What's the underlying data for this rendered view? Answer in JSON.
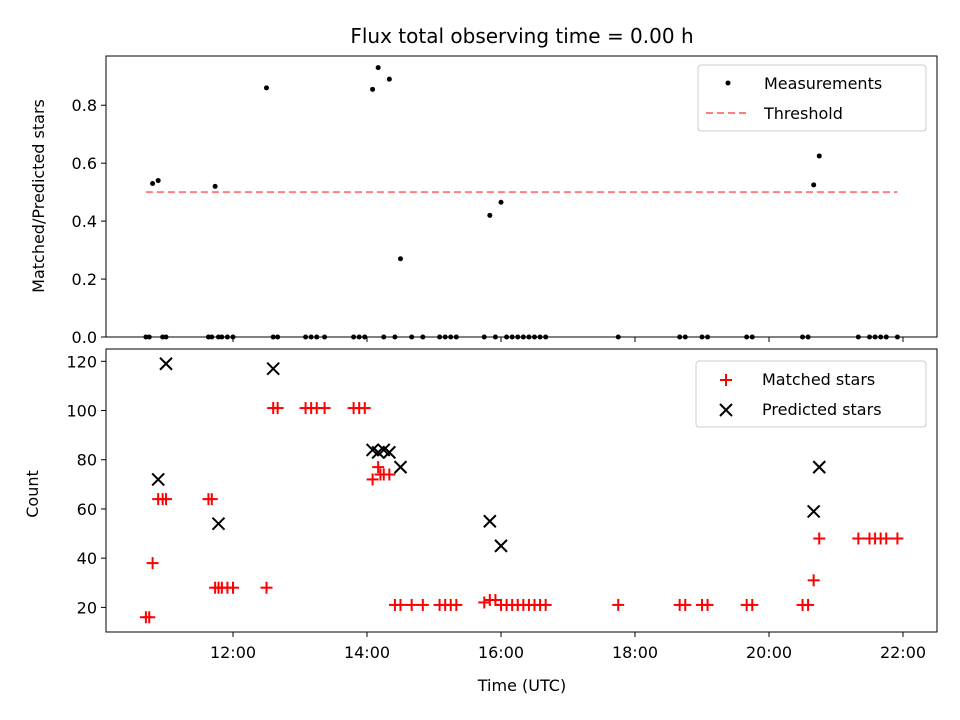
{
  "chart_data": [
    {
      "type": "scatter",
      "title": "Flux total observing time = 0.00 h",
      "xlabel": "",
      "ylabel": "Matched/Predicted stars",
      "ylim": [
        0,
        0.97
      ],
      "yticks": [
        "0.0",
        "0.2",
        "0.4",
        "0.6",
        "0.8"
      ],
      "grid": false,
      "legend_position": "top-right",
      "series": [
        {
          "name": "Measurements",
          "marker": "dot",
          "color": "#000000",
          "x": [
            "10:42",
            "10:45",
            "10:48",
            "10:53",
            "10:57",
            "11:00",
            "11:38",
            "11:41",
            "11:44",
            "11:47",
            "11:50",
            "11:55",
            "12:00",
            "12:30",
            "12:36",
            "12:40",
            "13:05",
            "13:10",
            "13:15",
            "13:22",
            "13:48",
            "13:53",
            "13:58",
            "14:05",
            "14:10",
            "14:15",
            "14:20",
            "14:25",
            "14:30",
            "14:40",
            "14:50",
            "15:05",
            "15:10",
            "15:15",
            "15:20",
            "15:45",
            "15:50",
            "15:55",
            "16:00",
            "16:05",
            "16:10",
            "16:15",
            "16:20",
            "16:25",
            "16:30",
            "16:35",
            "16:40",
            "17:45",
            "18:40",
            "18:45",
            "19:00",
            "19:05",
            "19:40",
            "19:45",
            "20:30",
            "20:35",
            "20:40",
            "20:45",
            "21:20",
            "21:30",
            "21:35",
            "21:40",
            "21:45",
            "21:55"
          ],
          "y": [
            0,
            0,
            0.53,
            0.54,
            0,
            0,
            0,
            0,
            0.52,
            0,
            0,
            0,
            0,
            0.86,
            0,
            0,
            0,
            0,
            0,
            0,
            0,
            0,
            0,
            0.855,
            0.93,
            0,
            0.89,
            0,
            0.27,
            0,
            0,
            0,
            0,
            0,
            0,
            0,
            0.42,
            0,
            0.465,
            0,
            0,
            0,
            0,
            0,
            0,
            0,
            0,
            0,
            0,
            0,
            0,
            0,
            0,
            0,
            0,
            0,
            0.525,
            0.625,
            0,
            0,
            0,
            0,
            0,
            0
          ]
        },
        {
          "name": "Threshold",
          "style": "dashed",
          "color": "#ff7f7f",
          "x": [
            "10:42",
            "21:55"
          ],
          "y": [
            0.5,
            0.5
          ]
        }
      ]
    },
    {
      "type": "scatter",
      "title": "",
      "xlabel": "Time (UTC)",
      "ylabel": "Count",
      "ylim": [
        10,
        125
      ],
      "xticks": [
        "12:00",
        "14:00",
        "16:00",
        "18:00",
        "20:00",
        "22:00"
      ],
      "yticks": [
        "20",
        "40",
        "60",
        "80",
        "100",
        "120"
      ],
      "grid": false,
      "legend_position": "top-right",
      "series": [
        {
          "name": "Matched stars",
          "marker": "plus",
          "color": "#ff0000",
          "x": [
            "10:42",
            "10:45",
            "10:48",
            "10:53",
            "10:57",
            "11:00",
            "11:38",
            "11:41",
            "11:44",
            "11:47",
            "11:50",
            "11:55",
            "12:00",
            "12:30",
            "12:36",
            "12:40",
            "13:05",
            "13:10",
            "13:15",
            "13:22",
            "13:48",
            "13:53",
            "13:58",
            "14:05",
            "14:10",
            "14:12",
            "14:15",
            "14:20",
            "14:25",
            "14:30",
            "14:40",
            "14:50",
            "15:05",
            "15:10",
            "15:15",
            "15:20",
            "15:45",
            "15:50",
            "15:55",
            "16:00",
            "16:05",
            "16:10",
            "16:15",
            "16:20",
            "16:25",
            "16:30",
            "16:35",
            "16:40",
            "17:45",
            "18:40",
            "18:45",
            "19:00",
            "19:05",
            "19:40",
            "19:45",
            "20:30",
            "20:35",
            "20:40",
            "20:45",
            "21:20",
            "21:30",
            "21:35",
            "21:40",
            "21:45",
            "21:55"
          ],
          "y": [
            16,
            16,
            38,
            64,
            64,
            64,
            64,
            64,
            28,
            28,
            28,
            28,
            28,
            28,
            101,
            101,
            101,
            101,
            101,
            101,
            101,
            101,
            101,
            72,
            77,
            74,
            74,
            74,
            21,
            21,
            21,
            21,
            21,
            21,
            21,
            21,
            22,
            23,
            23,
            21,
            21,
            21,
            21,
            21,
            21,
            21,
            21,
            21,
            21,
            21,
            21,
            21,
            21,
            21,
            21,
            21,
            21,
            31,
            48,
            48,
            48,
            48,
            48,
            48,
            48
          ]
        },
        {
          "name": "Predicted stars",
          "marker": "x",
          "color": "#000000",
          "x": [
            "10:53",
            "11:00",
            "11:47",
            "12:36",
            "14:05",
            "14:10",
            "14:15",
            "14:20",
            "14:30",
            "15:50",
            "16:00",
            "20:40",
            "20:45"
          ],
          "y": [
            72,
            119,
            54,
            117,
            84,
            83,
            84,
            83,
            77,
            55,
            45,
            59,
            77
          ]
        }
      ]
    }
  ]
}
